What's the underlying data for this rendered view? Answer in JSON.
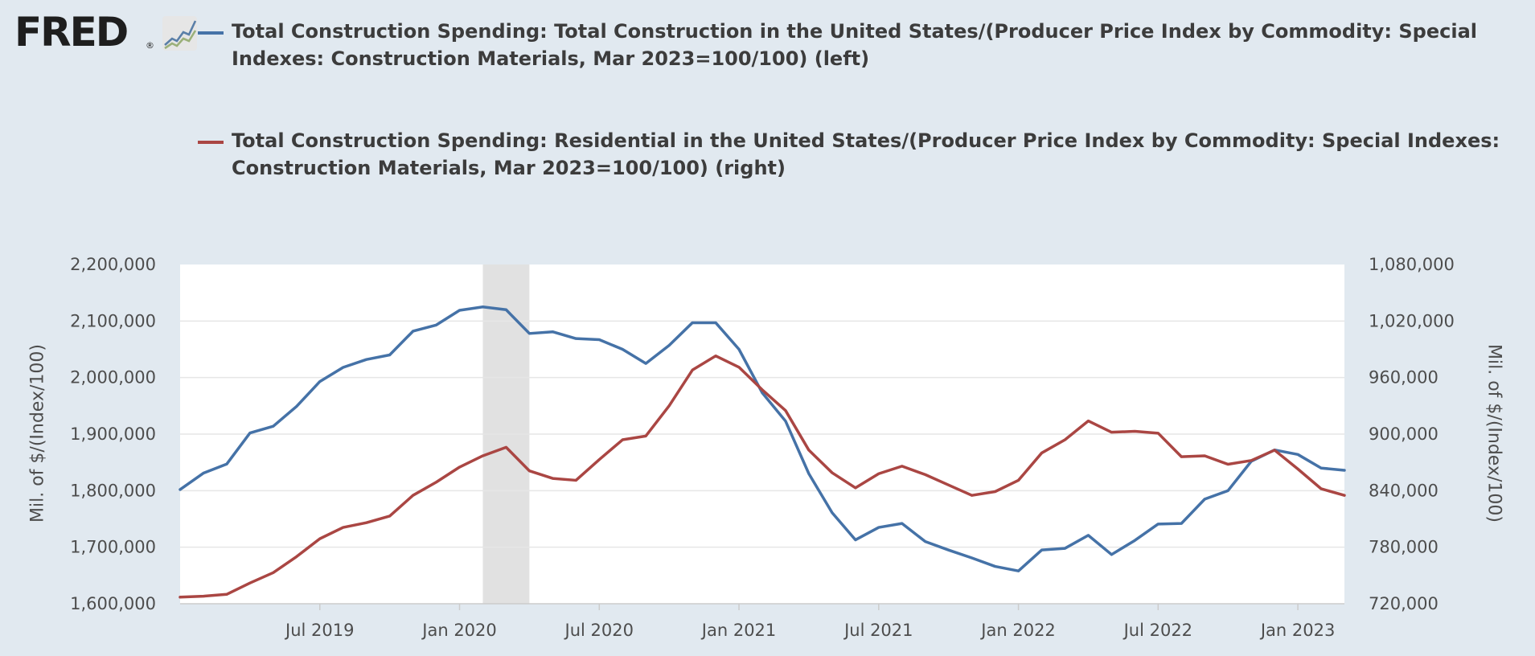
{
  "logo": {
    "text": "FRED",
    "mark": "®",
    "icon": "line-chart-icon"
  },
  "chart_data": {
    "type": "line",
    "x_dates": [
      "2019-01",
      "2019-02",
      "2019-03",
      "2019-04",
      "2019-05",
      "2019-06",
      "2019-07",
      "2019-08",
      "2019-09",
      "2019-10",
      "2019-11",
      "2019-12",
      "2020-01",
      "2020-02",
      "2020-03",
      "2020-04",
      "2020-05",
      "2020-06",
      "2020-07",
      "2020-08",
      "2020-09",
      "2020-10",
      "2020-11",
      "2020-12",
      "2021-01",
      "2021-02",
      "2021-03",
      "2021-04",
      "2021-05",
      "2021-06",
      "2021-07",
      "2021-08",
      "2021-09",
      "2021-10",
      "2021-11",
      "2021-12",
      "2022-01",
      "2022-02",
      "2022-03",
      "2022-04",
      "2022-05",
      "2022-06",
      "2022-07",
      "2022-08",
      "2022-09",
      "2022-10",
      "2022-11",
      "2022-12",
      "2023-01",
      "2023-02",
      "2023-03"
    ],
    "series": [
      {
        "name": "Total Construction Spending: Total Construction in the United States/(Producer Price Index by Commodity: Special Indexes: Construction Materials, Mar 2023=100/100) (left)",
        "axis": "left",
        "color": "#4572a7",
        "values": [
          1802000,
          1831000,
          1847000,
          1902000,
          1914000,
          1949000,
          1993000,
          2018000,
          2032000,
          2040000,
          2082000,
          2093000,
          2119000,
          2125000,
          2120000,
          2078000,
          2081000,
          2069000,
          2067000,
          2050000,
          2025000,
          2057000,
          2097000,
          2097000,
          2050000,
          1973000,
          1923000,
          1830000,
          1761000,
          1713000,
          1735000,
          1742000,
          1710000,
          1695000,
          1681000,
          1666000,
          1658000,
          1695000,
          1698000,
          1721000,
          1687000,
          1712000,
          1741000,
          1742000,
          1785000,
          1800000,
          1852000,
          1872000,
          1864000,
          1840000,
          1836000
        ]
      },
      {
        "name": "Total Construction Spending: Residential in the United States/(Producer Price Index by Commodity: Special Indexes: Construction Materials, Mar 2023=100/100) (right)",
        "axis": "right",
        "color": "#aa4643",
        "values": [
          727000,
          728000,
          730000,
          742000,
          753000,
          770000,
          789000,
          801000,
          806000,
          813000,
          835000,
          849000,
          865000,
          877000,
          886000,
          861000,
          853000,
          851000,
          873000,
          894000,
          898000,
          930000,
          968000,
          983000,
          971000,
          947000,
          925000,
          883000,
          859000,
          843000,
          858000,
          866000,
          857000,
          846000,
          835000,
          839000,
          851000,
          880000,
          894000,
          914000,
          902000,
          903000,
          901000,
          876000,
          877000,
          868000,
          872000,
          883000,
          863000,
          842000,
          835000
        ]
      }
    ],
    "x_ticks": [
      "Jul 2019",
      "Jan 2020",
      "Jul 2020",
      "Jan 2021",
      "Jul 2021",
      "Jan 2022",
      "Jul 2022",
      "Jan 2023"
    ],
    "y_left": {
      "label": "Mil. of $/(Index/100)",
      "ylim": [
        1600000,
        2200000
      ],
      "ticks": [
        "1,600,000",
        "1,700,000",
        "1,800,000",
        "1,900,000",
        "2,000,000",
        "2,100,000",
        "2,200,000"
      ]
    },
    "y_right": {
      "label": "Mil. of $/(Index/100)",
      "ylim": [
        720000,
        1080000
      ],
      "ticks": [
        "720,000",
        "780,000",
        "840,000",
        "900,000",
        "960,000",
        "1,020,000",
        "1,080,000"
      ]
    },
    "recession": {
      "start": "2020-02",
      "end": "2020-04"
    },
    "grid": true,
    "legend_position": "top"
  }
}
